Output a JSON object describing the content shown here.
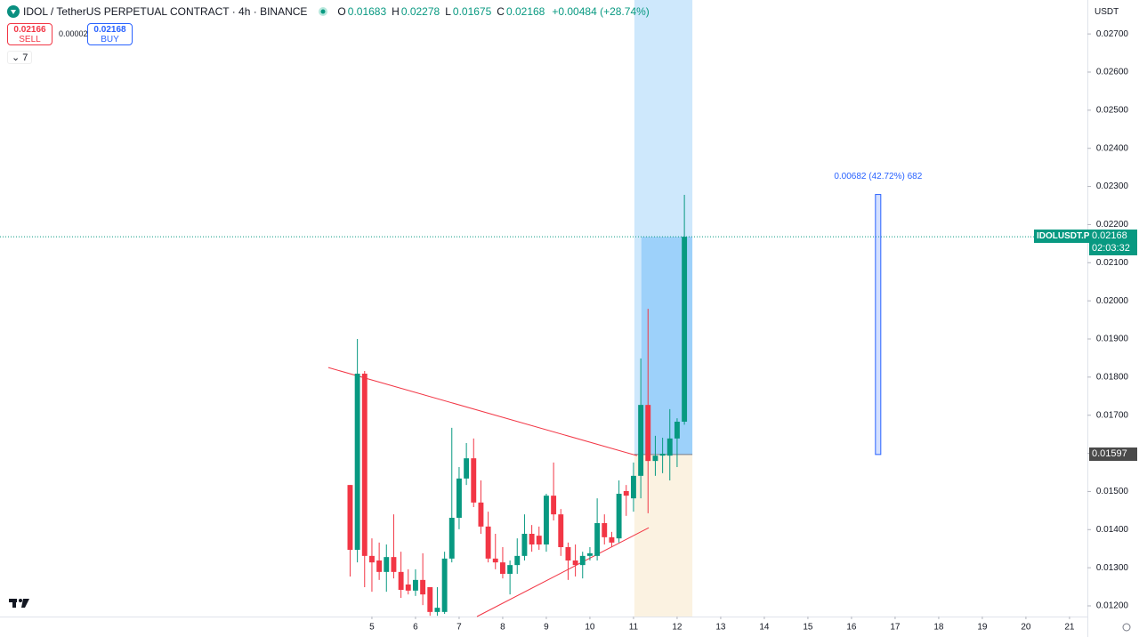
{
  "header": {
    "symbol": "IDOL / TetherUS PERPETUAL CONTRACT · 4h · BINANCE",
    "ohlc": [
      {
        "key": "O",
        "value": 0.01683
      },
      {
        "key": "H",
        "value": 0.02278
      },
      {
        "key": "L",
        "value": 0.01675
      },
      {
        "key": "C",
        "value": 0.02168
      }
    ],
    "change": "+0.00484 (+28.74%)",
    "sell": {
      "price": 0.02166,
      "label": "SELL"
    },
    "spread": 2e-05,
    "buy": {
      "price": 0.02168,
      "label": "BUY"
    },
    "indicators": "7",
    "currency": "USDT"
  },
  "chart_data": {
    "type": "candlestick",
    "x": [
      4.5,
      4.667,
      4.833,
      5,
      5.167,
      5.333,
      5.5,
      5.667,
      5.833,
      6,
      6.167,
      6.333,
      6.5,
      6.667,
      6.833,
      7,
      7.167,
      7.333,
      7.5,
      7.667,
      7.833,
      8,
      8.167,
      8.333,
      8.5,
      8.667,
      8.833,
      9,
      9.167,
      9.333,
      9.5,
      9.667,
      9.833,
      10,
      10.167,
      10.333,
      10.5,
      10.667,
      10.833,
      11,
      11.167,
      11.333,
      11.5,
      11.667,
      11.833,
      12,
      12.167
    ],
    "open": [
      0.01517,
      0.01347,
      0.01809,
      0.01331,
      0.01319,
      0.01289,
      0.01328,
      0.01289,
      0.01256,
      0.0124,
      0.01268,
      0.01249,
      0.01184,
      0.01184,
      0.01324,
      0.01431,
      0.01534,
      0.01587,
      0.01471,
      0.01408,
      0.01324,
      0.01314,
      0.01284,
      0.01307,
      0.01331,
      0.01389,
      0.01384,
      0.01361,
      0.01489,
      0.0144,
      0.01354,
      0.01319,
      0.01307,
      0.01331,
      0.01331,
      0.01417,
      0.0138,
      0.01377,
      0.01501,
      0.01482,
      0.01541,
      0.01727,
      0.0158,
      0.01594,
      0.01594,
      0.01639,
      0.01683
    ],
    "high": [
      0.01517,
      0.019,
      0.01816,
      0.01377,
      0.01366,
      0.01361,
      0.0144,
      0.01342,
      0.01296,
      0.01296,
      0.01338,
      0.01249,
      0.01249,
      0.01342,
      0.01667,
      0.01564,
      0.01627,
      0.01639,
      0.01529,
      0.01447,
      0.01389,
      0.01354,
      0.01319,
      0.01377,
      0.0144,
      0.01412,
      0.01408,
      0.01494,
      0.01576,
      0.01454,
      0.01366,
      0.01361,
      0.01342,
      0.01354,
      0.01482,
      0.0144,
      0.01394,
      0.01529,
      0.01517,
      0.01576,
      0.01849,
      0.01979,
      0.01646,
      0.01641,
      0.01716,
      0.01692,
      0.02278
    ],
    "low": [
      0.01277,
      0.01314,
      0.01249,
      0.01237,
      0.01268,
      0.01237,
      0.01272,
      0.01221,
      0.0123,
      0.01226,
      0.01202,
      0.01174,
      0.01174,
      0.01179,
      0.01314,
      0.01401,
      0.01517,
      0.01459,
      0.01389,
      0.01314,
      0.01296,
      0.01272,
      0.0123,
      0.01284,
      0.01319,
      0.01342,
      0.01347,
      0.01342,
      0.01424,
      0.01331,
      0.01268,
      0.01277,
      0.01272,
      0.01319,
      0.01319,
      0.01361,
      0.01354,
      0.01366,
      0.01436,
      0.01447,
      0.01482,
      0.01443,
      0.01541,
      0.01548,
      0.01529,
      0.01564,
      0.01675
    ],
    "close": [
      0.01347,
      0.01809,
      0.01331,
      0.01314,
      0.01289,
      0.01328,
      0.01289,
      0.01242,
      0.0124,
      0.01268,
      0.0123,
      0.01184,
      0.01195,
      0.01324,
      0.01431,
      0.01534,
      0.01587,
      0.01471,
      0.01408,
      0.01324,
      0.01314,
      0.01284,
      0.01307,
      0.01331,
      0.01389,
      0.01361,
      0.01361,
      0.01489,
      0.0144,
      0.01354,
      0.01319,
      0.01307,
      0.01331,
      0.01338,
      0.01417,
      0.0138,
      0.01366,
      0.01494,
      0.01489,
      0.01541,
      0.01727,
      0.0158,
      0.01594,
      0.01599,
      0.01639,
      0.01683,
      0.02168
    ],
    "up_color": "#089981",
    "down_color": "#f23645",
    "xlim": [
      -3.53,
      21.41
    ],
    "ylim": [
      0.01172,
      0.02789
    ],
    "xticks": [
      5,
      6,
      7,
      8,
      9,
      10,
      11,
      12,
      13,
      14,
      15,
      16,
      17,
      18,
      19,
      20,
      21
    ],
    "yticks": [
      {
        "value": 0.012,
        "label": "0.01200"
      },
      {
        "value": 0.013,
        "label": "0.01300"
      },
      {
        "value": 0.014,
        "label": "0.01400"
      },
      {
        "value": 0.015,
        "label": "0.01500"
      },
      {
        "value": 0.016,
        "label": "0.01600"
      },
      {
        "value": 0.017,
        "label": "0.01700"
      },
      {
        "value": 0.018,
        "label": "0.01800"
      },
      {
        "value": 0.019,
        "label": "0.01900"
      },
      {
        "value": 0.02,
        "label": "0.02000"
      },
      {
        "value": 0.021,
        "label": "0.02100"
      },
      {
        "value": 0.022,
        "label": "0.02200"
      },
      {
        "value": 0.023,
        "label": "0.02300"
      },
      {
        "value": 0.024,
        "label": "0.02400"
      },
      {
        "value": 0.025,
        "label": "0.02500"
      },
      {
        "value": 0.026,
        "label": "0.02600"
      },
      {
        "value": 0.027,
        "label": "0.02700"
      }
    ],
    "grid": false,
    "last_price": {
      "symbol": "IDOLUSDT.P",
      "value": 0.02168,
      "countdown": "02:03:32",
      "color": "#089981"
    },
    "position": {
      "entry": 0.01597,
      "from": 11.02,
      "filled_from": 11.18,
      "to": 12.35
    },
    "trendlines": [
      {
        "x": [
          4.0,
          11.08
        ],
        "y": [
          0.01825,
          0.01594
        ],
        "color": "#f23645"
      },
      {
        "x": [
          7.41,
          11.35
        ],
        "y": [
          0.01172,
          0.01405
        ],
        "color": "#f23645"
      }
    ],
    "measure": {
      "label": "0.00682 (42.72%) 682",
      "x": 16.61,
      "from": 0.01597,
      "to": 0.02279,
      "color": "#2962ff"
    }
  }
}
